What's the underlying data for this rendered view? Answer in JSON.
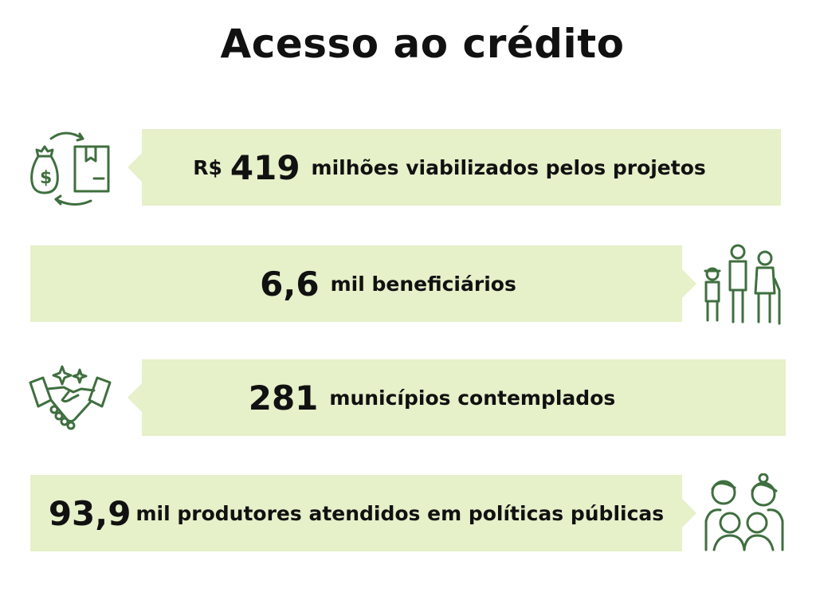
{
  "title": "Acesso ao crédito",
  "accent_color": "#3f6f3f",
  "banner_color": "#e6f0c9",
  "stats": [
    {
      "prefix": "R$",
      "number": "419",
      "text": "milhões viabilizados pelos projetos",
      "icon": "money-bag-box-exchange-icon"
    },
    {
      "number": "6,6",
      "text": "mil beneficiários",
      "icon": "people-ages-icon"
    },
    {
      "number": "281",
      "text": "municípios contemplados",
      "icon": "handshake-icon"
    },
    {
      "number": "93,9",
      "text": "mil produtores atendidos em políticas públicas",
      "icon": "family-group-icon"
    }
  ]
}
